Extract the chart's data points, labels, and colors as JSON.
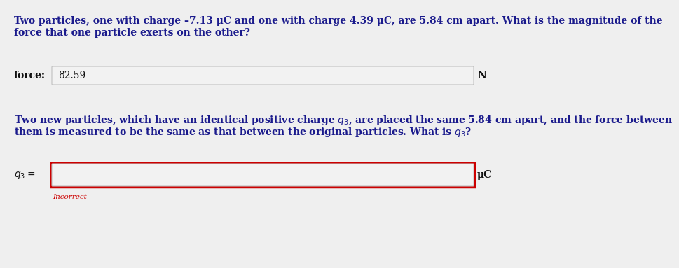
{
  "bg_color": "#efefef",
  "white": "#f5f5f5",
  "text_color": "#1a1a8c",
  "text_black": "#111111",
  "red_color": "#cc0000",
  "q1_line1": "Two particles, one with charge –7.13 μC and one with charge 4.39 μC, are 5.84 cm apart. What is the magnitude of the",
  "q1_line2": "force that one particle exerts on the other?",
  "force_label": "force:",
  "force_value": "82.59",
  "force_unit": "N",
  "q2_line1": "Two new particles, which have an identical positive charge $q_3$, are placed the same 5.84 cm apart, and the force between",
  "q2_line2": "them is measured to be the same as that between the original particles. What is $q_3$?",
  "q3_label": "$q_3 =$",
  "q3_unit": "μC",
  "incorrect_text": "Incorrect",
  "fs": 10.0,
  "fs_incorrect": 7.5
}
